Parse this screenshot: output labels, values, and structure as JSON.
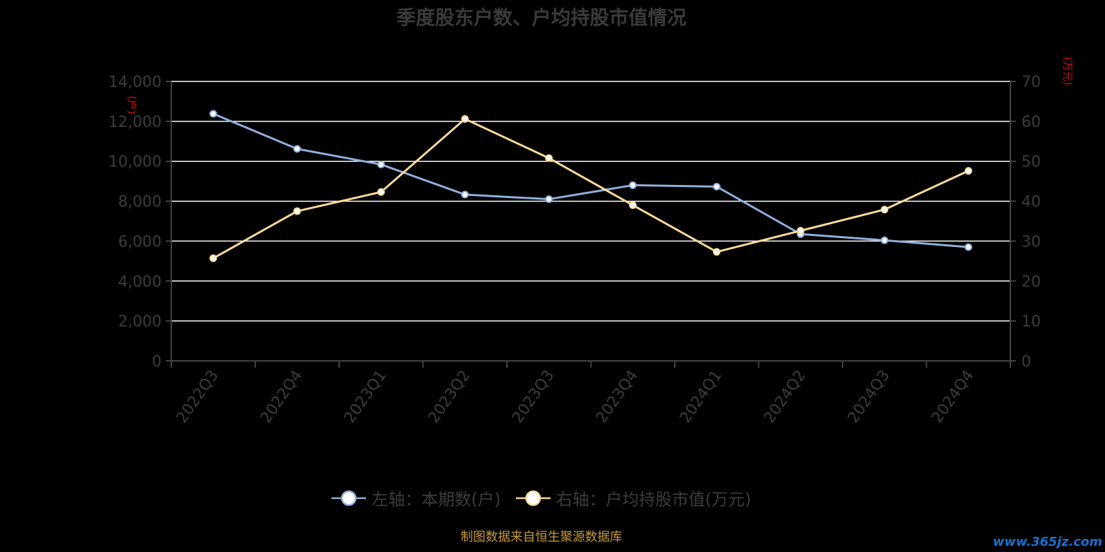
{
  "title": "季度股东户数、户均持股市值情况",
  "source_note": "制图数据来自恒生聚源数据库",
  "watermark": "www.365jz.com",
  "colors": {
    "background": "#000000",
    "series_left": "#8fb0df",
    "series_right": "#fcd99a",
    "gridline": "#ffffff",
    "axis_text": "#3c3c3c",
    "unit_text": "#d01010",
    "source_text": "#c89a3c",
    "watermark": "#1e6fd0"
  },
  "chart_data": {
    "type": "line",
    "categories": [
      "2022Q3",
      "2022Q4",
      "2023Q1",
      "2023Q2",
      "2023Q3",
      "2023Q4",
      "2024Q1",
      "2024Q2",
      "2024Q3",
      "2024Q4"
    ],
    "series": [
      {
        "name": "左轴：本期数(户)",
        "axis": "left",
        "color": "#8fb0df",
        "values": [
          12380,
          10620,
          9840,
          8330,
          8100,
          8800,
          8730,
          6350,
          6040,
          5700
        ]
      },
      {
        "name": "右轴：户均持股市值(万元)",
        "axis": "right",
        "color": "#fcd99a",
        "values": [
          25.7,
          37.5,
          42.3,
          60.6,
          50.8,
          39.0,
          27.3,
          32.6,
          37.9,
          47.6
        ]
      }
    ],
    "y_left": {
      "label": "(户)",
      "min": 0,
      "max": 14000,
      "ticks": [
        "0",
        "2,000",
        "4,000",
        "6,000",
        "8,000",
        "10,000",
        "12,000",
        "14,000"
      ]
    },
    "y_right": {
      "label": "(万元)",
      "min": 0,
      "max": 70,
      "ticks": [
        "0",
        "10",
        "20",
        "30",
        "40",
        "50",
        "60",
        "70"
      ]
    },
    "grid": true,
    "legend_position": "bottom-center"
  }
}
